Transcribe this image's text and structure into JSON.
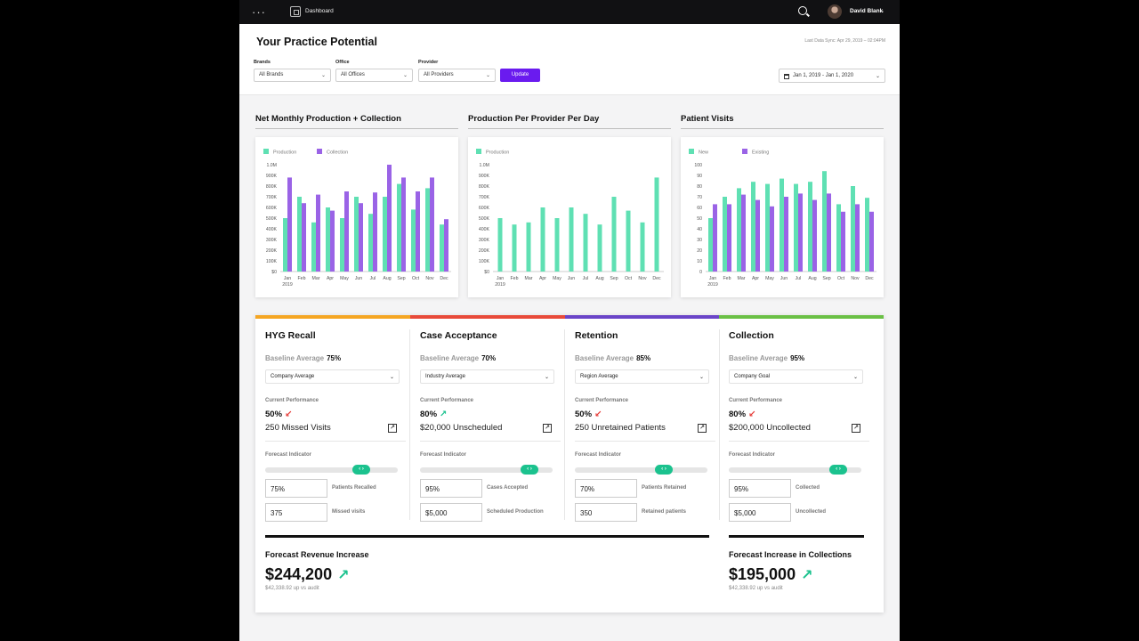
{
  "nav": {
    "title": "Dashboard",
    "user_name": "David Blank",
    "caret": "⌄",
    "dots": "···"
  },
  "header": {
    "title": "Your Practice Potential",
    "last_sync": "Last Data Sync: Apr 29, 2019 – 02:04PM",
    "filters": [
      {
        "label": "Brands",
        "value": "All Brands"
      },
      {
        "label": "Office",
        "value": "All Offices"
      },
      {
        "label": "Provider",
        "value": "All Providers"
      }
    ],
    "update_label": "Update",
    "date_range": "Jan 1, 2019 - Jan 1, 2020"
  },
  "chart_data": [
    {
      "type": "bar",
      "title": "Net Monthly Production + Collection",
      "categories": [
        "Jan",
        "Feb",
        "Mar",
        "Apr",
        "May",
        "Jun",
        "Jul",
        "Aug",
        "Sep",
        "Oct",
        "Nov",
        "Dec"
      ],
      "first_category_year": "2019",
      "yticks": [
        "$0",
        "100K",
        "200K",
        "300K",
        "400K",
        "500K",
        "600K",
        "700K",
        "800K",
        "900K",
        "1.0M"
      ],
      "ylim": [
        0,
        1000000
      ],
      "series": [
        {
          "name": "Production",
          "color": "#5fe0b3",
          "values": [
            500000,
            700000,
            460000,
            600000,
            500000,
            700000,
            540000,
            700000,
            820000,
            580000,
            780000,
            440000
          ]
        },
        {
          "name": "Collection",
          "color": "#9a63e6",
          "values": [
            880000,
            640000,
            720000,
            570000,
            750000,
            640000,
            740000,
            1000000,
            880000,
            750000,
            880000,
            490000
          ]
        }
      ]
    },
    {
      "type": "bar",
      "title": "Production Per Provider Per Day",
      "categories": [
        "Jan",
        "Feb",
        "Mar",
        "Apr",
        "May",
        "Jun",
        "Jul",
        "Aug",
        "Sep",
        "Oct",
        "Nov",
        "Dec"
      ],
      "first_category_year": "2019",
      "yticks": [
        "$0",
        "100K",
        "200K",
        "300K",
        "400K",
        "500K",
        "600K",
        "700K",
        "800K",
        "900K",
        "1.0M"
      ],
      "ylim": [
        0,
        1000000
      ],
      "series": [
        {
          "name": "Production",
          "color": "#5fe0b3",
          "values": [
            500000,
            440000,
            460000,
            600000,
            500000,
            600000,
            540000,
            440000,
            700000,
            570000,
            460000,
            880000
          ]
        }
      ]
    },
    {
      "type": "bar",
      "title": "Patient Visits",
      "categories": [
        "Jan",
        "Feb",
        "Mar",
        "Apr",
        "May",
        "Jun",
        "Jul",
        "Aug",
        "Sep",
        "Oct",
        "Nov",
        "Dec"
      ],
      "first_category_year": "2019",
      "yticks": [
        "0",
        "10",
        "20",
        "30",
        "40",
        "50",
        "60",
        "70",
        "80",
        "90",
        "100"
      ],
      "ylim": [
        0,
        100
      ],
      "series": [
        {
          "name": "New",
          "color": "#5fe0b3",
          "values": [
            50,
            70,
            78,
            84,
            82,
            87,
            82,
            84,
            94,
            63,
            80,
            69
          ]
        },
        {
          "name": "Existing",
          "color": "#9a63e6",
          "values": [
            63,
            63,
            72,
            67,
            61,
            70,
            73,
            67,
            73,
            56,
            63,
            56
          ]
        }
      ]
    }
  ],
  "kpis": [
    {
      "title": "HYG Recall",
      "color": "#f5a623",
      "baseline_label": "Baseline Average",
      "baseline_value": "75%",
      "select": "Company Average",
      "cp_label": "Current Performance",
      "cp_pct": "50%",
      "cp_dir": "↙",
      "cp_value": "250 Missed Visits",
      "fi_label": "Forecast Indicator",
      "slider": 0.75,
      "slider_glyph": "‹ ›",
      "fields": [
        {
          "value": "75%",
          "label": "Patients Recalled"
        },
        {
          "value": "375",
          "label": "Missed visits"
        }
      ]
    },
    {
      "title": "Case Acceptance",
      "color": "#e84a3a",
      "baseline_label": "Baseline Average",
      "baseline_value": "70%",
      "select": "Industry Average",
      "cp_label": "Current Performance",
      "cp_pct": "80%",
      "cp_dir": "↗",
      "cp_value": "$20,000 Unscheduled",
      "fi_label": "Forecast Indicator",
      "slider": 0.85,
      "slider_glyph": "‹ ›",
      "fields": [
        {
          "value": "95%",
          "label": "Cases Accepted"
        },
        {
          "value": "$5,000",
          "label": "Scheduled Production"
        }
      ]
    },
    {
      "title": "Retention",
      "color": "#6a45c8",
      "baseline_label": "Baseline Average",
      "baseline_value": "85%",
      "select": "Region Average",
      "cp_label": "Current Performance",
      "cp_pct": "50%",
      "cp_dir": "↙",
      "cp_value": "250 Unretained Patients",
      "fi_label": "Forecast Indicator",
      "slider": 0.7,
      "slider_glyph": "‹ ›",
      "fields": [
        {
          "value": "70%",
          "label": "Patients Retained"
        },
        {
          "value": "350",
          "label": "Retained patients"
        }
      ]
    },
    {
      "title": "Collection",
      "color": "#6ac045",
      "baseline_label": "Baseline Average",
      "baseline_value": "95%",
      "select": "Company Goal",
      "cp_label": "Current Performance",
      "cp_pct": "80%",
      "cp_dir": "↙",
      "cp_value": "$200,000 Uncollected",
      "fi_label": "Forecast Indicator",
      "slider": 0.85,
      "slider_glyph": "‹ ›",
      "fields": [
        {
          "value": "95%",
          "label": "Collected"
        },
        {
          "value": "$5,000",
          "label": "Uncollected"
        }
      ]
    }
  ],
  "forecasts": [
    {
      "title": "Forecast Revenue Increase",
      "value": "$244,200",
      "arrow": "↗",
      "sub": "$42,338.92 up vs audit"
    },
    {
      "title": "Forecast Increase in Collections",
      "value": "$195,000",
      "arrow": "↗",
      "sub": "$42,338.92 up vs audit"
    }
  ]
}
